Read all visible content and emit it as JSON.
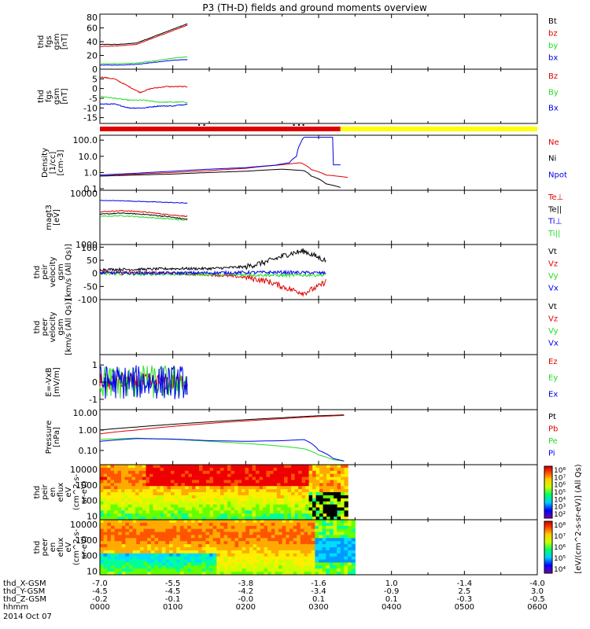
{
  "title": "P3 (TH-D) fields and ground moments overview",
  "date_label": "2014 Oct 07",
  "colors": {
    "red": "#e00000",
    "green": "#22dd22",
    "blue": "#0000ee",
    "black": "#000000",
    "yellow": "#ffff00"
  },
  "bottom_axis": {
    "rows": [
      {
        "label": "thd_X-GSM",
        "values": [
          "-7.0",
          "-5.5",
          "-3.8",
          "-1.6",
          "1.0",
          "-1.4",
          "-4.0"
        ]
      },
      {
        "label": "thd_Y-GSM",
        "values": [
          "-4.5",
          "-4.5",
          "-4.2",
          "-3.4",
          "-0.9",
          "2.5",
          "3.0"
        ]
      },
      {
        "label": "thd_Z-GSM",
        "values": [
          "-0.2",
          "-0.1",
          "-0.0",
          "0.1",
          "0.1",
          "-0.3",
          "-0.5"
        ]
      },
      {
        "label": "hhmm",
        "values": [
          "0000",
          "0100",
          "0200",
          "0300",
          "0400",
          "0500",
          "0600"
        ]
      }
    ]
  },
  "chart_data": [
    {
      "type": "line",
      "id": "p1",
      "ylabel": [
        "thd",
        "fgs",
        "gsm",
        "[nT]"
      ],
      "yticks": [
        "80",
        "60",
        "40",
        "20",
        "0"
      ],
      "ylim": [
        0,
        80
      ],
      "series": [
        {
          "name": "Bt",
          "color": "#000000",
          "x": [
            0,
            0.25,
            0.5,
            0.75,
            1.0,
            1.2
          ],
          "y": [
            36,
            36,
            38,
            48,
            58,
            66
          ]
        },
        {
          "name": "bz",
          "color": "#e00000",
          "x": [
            0,
            0.25,
            0.5,
            0.75,
            1.0,
            1.2
          ],
          "y": [
            33,
            34,
            36,
            46,
            56,
            64
          ]
        },
        {
          "name": "by",
          "color": "#22dd22",
          "x": [
            0,
            0.25,
            0.5,
            0.75,
            1.0,
            1.2
          ],
          "y": [
            8,
            8,
            9,
            12,
            16,
            18
          ]
        },
        {
          "name": "bx",
          "color": "#0000ee",
          "x": [
            0,
            0.25,
            0.5,
            0.75,
            1.0,
            1.2
          ],
          "y": [
            6,
            6,
            7,
            10,
            13,
            14
          ]
        }
      ]
    },
    {
      "type": "line",
      "id": "p2",
      "ylabel": [
        "thd",
        "fgs",
        "gsm",
        "[nT]"
      ],
      "yticks": [
        "5",
        "0",
        "-5",
        "-10",
        "-15"
      ],
      "ylim": [
        -18,
        10
      ],
      "series": [
        {
          "name": "Bz",
          "color": "#e00000",
          "x": [
            0,
            0.2,
            0.4,
            0.55,
            0.7,
            0.9,
            1.2
          ],
          "y": [
            6,
            5,
            1,
            -2,
            0,
            1,
            1
          ]
        },
        {
          "name": "By",
          "color": "#22dd22",
          "x": [
            0,
            0.2,
            0.4,
            0.6,
            0.8,
            1.0,
            1.2
          ],
          "y": [
            -4,
            -5,
            -6,
            -6,
            -7,
            -7,
            -7
          ]
        },
        {
          "name": "Bx",
          "color": "#0000ee",
          "x": [
            0,
            0.2,
            0.4,
            0.6,
            0.8,
            1.0,
            1.2
          ],
          "y": [
            -8,
            -8,
            -10,
            -10,
            -9,
            -9,
            -8
          ]
        }
      ]
    },
    {
      "type": "line",
      "id": "p3",
      "log": true,
      "ylabel": [
        "Density",
        "[1/cc]",
        "[cm-3]"
      ],
      "yticks": [
        "100.0",
        "10.0",
        "1.0",
        "0.1"
      ],
      "ylim": [
        0.08,
        200
      ],
      "series": [
        {
          "name": "Ne",
          "color": "#e00000",
          "x": [
            0,
            0.5,
            1.0,
            1.5,
            2.0,
            2.5,
            2.75,
            2.9,
            3.1,
            3.4
          ],
          "y": [
            0.6,
            0.8,
            1.0,
            1.3,
            1.8,
            3.0,
            4.0,
            1.5,
            0.7,
            0.5
          ]
        },
        {
          "name": "Ni",
          "color": "#000000",
          "x": [
            0,
            0.5,
            1.0,
            1.5,
            2.0,
            2.5,
            2.8,
            2.9,
            3.1,
            3.3
          ],
          "y": [
            0.6,
            0.7,
            0.8,
            1.0,
            1.2,
            1.6,
            1.3,
            0.6,
            0.2,
            0.12
          ]
        },
        {
          "name": "Npot",
          "color": "#0000ee",
          "x": [
            0,
            0.5,
            1.0,
            1.5,
            2.0,
            2.4,
            2.6,
            2.7,
            2.75,
            2.8,
            3.1,
            3.2,
            3.2,
            3.3
          ],
          "y": [
            0.7,
            0.9,
            1.2,
            1.6,
            2.0,
            2.8,
            4.0,
            10,
            60,
            150,
            150,
            150,
            3,
            3
          ]
        }
      ]
    },
    {
      "type": "line",
      "id": "p4",
      "log": true,
      "ylabel": [
        "magt3",
        "[eV]"
      ],
      "yticks": [
        "10000",
        "1000"
      ],
      "ylim": [
        1000,
        10000
      ],
      "series": [
        {
          "name": "Te⊥",
          "color": "#e00000",
          "x": [
            0,
            0.3,
            0.6,
            0.9,
            1.2
          ],
          "y": [
            4000,
            4200,
            4000,
            3600,
            3300
          ]
        },
        {
          "name": "Te||",
          "color": "#000000",
          "x": [
            0,
            0.3,
            0.6,
            0.9,
            1.2
          ],
          "y": [
            3600,
            3800,
            3600,
            3300,
            2900
          ]
        },
        {
          "name": "Ti⊥",
          "color": "#0000ee",
          "x": [
            0,
            0.3,
            0.6,
            0.9,
            1.2
          ],
          "y": [
            6500,
            6400,
            6200,
            6000,
            5800
          ]
        },
        {
          "name": "Ti||",
          "color": "#22dd22",
          "x": [
            0,
            0.3,
            0.6,
            0.9,
            1.2
          ],
          "y": [
            3300,
            3400,
            3200,
            3000,
            2800
          ]
        }
      ]
    },
    {
      "type": "line",
      "id": "p5",
      "ylabel": [
        "thd",
        "peir",
        "velocity",
        "gsm",
        "[km/s (All Qs)]"
      ],
      "yticks": [
        "100",
        "50",
        "0",
        "-50",
        "-100"
      ],
      "ylim": [
        -100,
        110
      ],
      "series": [
        {
          "name": "Vt",
          "color": "#000000",
          "x": [
            0,
            0.5,
            1.0,
            1.5,
            2.0,
            2.3,
            2.6,
            2.8,
            3.0,
            3.1
          ],
          "y": [
            15,
            15,
            18,
            18,
            25,
            45,
            75,
            85,
            60,
            50
          ]
        },
        {
          "name": "Vz",
          "color": "#e00000",
          "x": [
            0,
            0.5,
            1.0,
            1.5,
            2.0,
            2.3,
            2.6,
            2.8,
            3.0,
            3.1
          ],
          "y": [
            5,
            3,
            0,
            -5,
            -15,
            -30,
            -60,
            -75,
            -50,
            -30
          ]
        },
        {
          "name": "Vy",
          "color": "#22dd22",
          "x": [
            0,
            0.5,
            1.0,
            1.5,
            2.0,
            2.5,
            3.0,
            3.1
          ],
          "y": [
            -2,
            -3,
            -2,
            -4,
            -5,
            -8,
            -6,
            -5
          ]
        },
        {
          "name": "Vx",
          "color": "#0000ee",
          "x": [
            0,
            0.5,
            1.0,
            1.5,
            2.0,
            2.5,
            3.0,
            3.1
          ],
          "y": [
            2,
            1,
            1,
            2,
            3,
            4,
            2,
            1
          ]
        }
      ]
    },
    {
      "type": "line",
      "id": "p6",
      "ylabel": [
        "thd",
        "peer",
        "velocity",
        "gsm",
        "[km/s (All Qs)]"
      ],
      "yticks": [],
      "ylim": [
        -100,
        100
      ],
      "series": [
        {
          "name": "Vt",
          "color": "#000000",
          "x": [],
          "y": []
        },
        {
          "name": "Vz",
          "color": "#e00000",
          "x": [],
          "y": []
        },
        {
          "name": "Vy",
          "color": "#22dd22",
          "x": [],
          "y": []
        },
        {
          "name": "Vx",
          "color": "#0000ee",
          "x": [],
          "y": []
        }
      ]
    },
    {
      "type": "line",
      "id": "p7",
      "ylabel": [
        "E=-VxB",
        "[mV/m]"
      ],
      "yticks": [
        "1",
        "0",
        "-1"
      ],
      "ylim": [
        -1.6,
        1.6
      ],
      "series": [
        {
          "name": "Ez",
          "color": "#e00000",
          "x": [
            0,
            0.6,
            1.2
          ],
          "y": [
            0,
            0,
            0
          ]
        },
        {
          "name": "Ey",
          "color": "#22dd22",
          "x": [
            0,
            0.6,
            1.2
          ],
          "y": [
            0,
            0,
            0
          ]
        },
        {
          "name": "Ex",
          "color": "#0000ee",
          "x": [
            0,
            0.6,
            1.2
          ],
          "y": [
            0,
            0,
            0
          ]
        }
      ]
    },
    {
      "type": "line",
      "id": "p8",
      "log": true,
      "ylabel": [
        "Pressure",
        "[nPa]"
      ],
      "yticks": [
        "10.00",
        "1.00",
        "0.10"
      ],
      "ylim": [
        0.02,
        10
      ],
      "series": [
        {
          "name": "Pt",
          "color": "#000000",
          "x": [
            0,
            0.5,
            1.0,
            1.5,
            2.0,
            2.5,
            3.0,
            3.35
          ],
          "y": [
            1.0,
            1.4,
            1.9,
            2.5,
            3.2,
            4.0,
            5.0,
            5.5
          ]
        },
        {
          "name": "Pb",
          "color": "#e00000",
          "x": [
            0,
            0.5,
            1.0,
            1.5,
            2.0,
            2.5,
            3.0,
            3.35
          ],
          "y": [
            0.65,
            1.0,
            1.5,
            2.1,
            2.8,
            3.6,
            4.6,
            5.2
          ]
        },
        {
          "name": "Pe",
          "color": "#22dd22",
          "x": [
            0,
            0.5,
            1.0,
            1.5,
            2.0,
            2.5,
            2.8,
            3.0,
            3.2,
            3.35
          ],
          "y": [
            0.35,
            0.4,
            0.35,
            0.28,
            0.22,
            0.16,
            0.12,
            0.06,
            0.035,
            0.03
          ]
        },
        {
          "name": "Pi",
          "color": "#0000ee",
          "x": [
            0,
            0.5,
            1.0,
            1.5,
            2.0,
            2.5,
            2.8,
            3.0,
            3.2,
            3.35
          ],
          "y": [
            0.28,
            0.38,
            0.36,
            0.3,
            0.28,
            0.3,
            0.34,
            0.1,
            0.04,
            0.03
          ]
        }
      ]
    },
    {
      "type": "heatmap",
      "id": "p9",
      "ylabel": [
        "thd",
        "peir",
        "en",
        "eflux",
        "eV",
        "(cm^2-s-",
        "sr-eV)"
      ],
      "yticks": [
        "10000",
        "1000",
        "100",
        "10"
      ],
      "xlim_hours": [
        0,
        3.4
      ]
    },
    {
      "type": "heatmap",
      "id": "p10",
      "ylabel": [
        "thd",
        "peer",
        "en",
        "eflux",
        "eV",
        "(cm^2-s-",
        "sr-eV)"
      ],
      "yticks": [
        "10000",
        "1000",
        "100",
        "10"
      ],
      "xlim_hours": [
        0,
        3.5
      ]
    }
  ],
  "colorbar1": {
    "labels": [
      "10⁸",
      "10⁷",
      "10⁶",
      "10⁵",
      "10⁴",
      "10³",
      "10²"
    ],
    "title": "[eV/(cm^2-s-sr-eV)] (All Qs)"
  },
  "colorbar2": {
    "labels": [
      "10⁸",
      "10⁷",
      "10⁶",
      "10⁵",
      "10⁴"
    ],
    "title": "[eV/(cm^2-s-sr-eV)] (All Qs)"
  }
}
